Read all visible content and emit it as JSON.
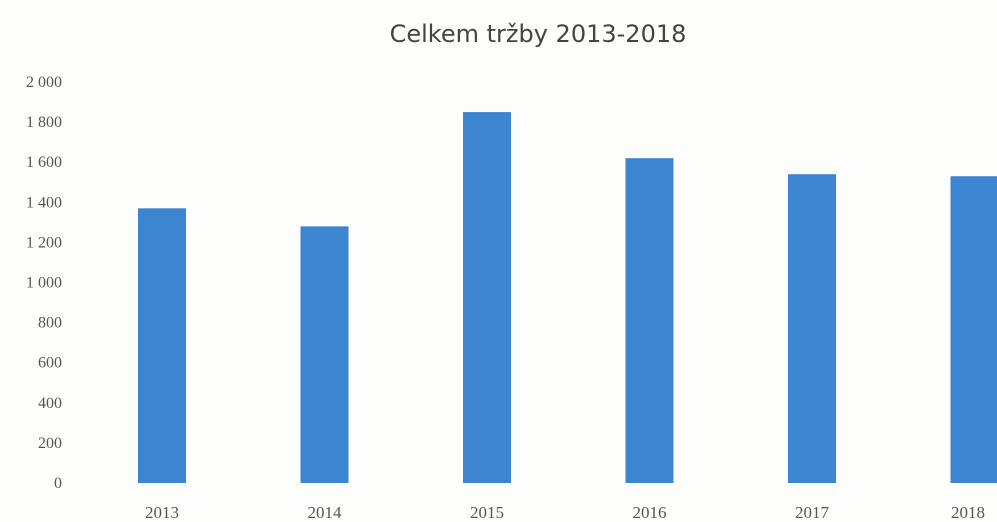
{
  "chart_data": {
    "type": "bar",
    "title": "Celkem tržby 2013-2018",
    "xlabel": "",
    "ylabel": "",
    "categories": [
      "2013",
      "2014",
      "2015",
      "2016",
      "2017",
      "2018"
    ],
    "values": [
      1370,
      1280,
      1850,
      1620,
      1540,
      1530
    ],
    "ylim": [
      0,
      2000
    ],
    "yticks": [
      0,
      200,
      400,
      600,
      800,
      1000,
      1200,
      1400,
      1600,
      1800,
      2000
    ],
    "ytick_labels": [
      "0",
      "200",
      "400",
      "600",
      "800",
      "1 000",
      "1 200",
      "1 400",
      "1 600",
      "1 800",
      "2 000"
    ],
    "grid": false,
    "legend": "none",
    "bar_color": "#3b85d1"
  }
}
